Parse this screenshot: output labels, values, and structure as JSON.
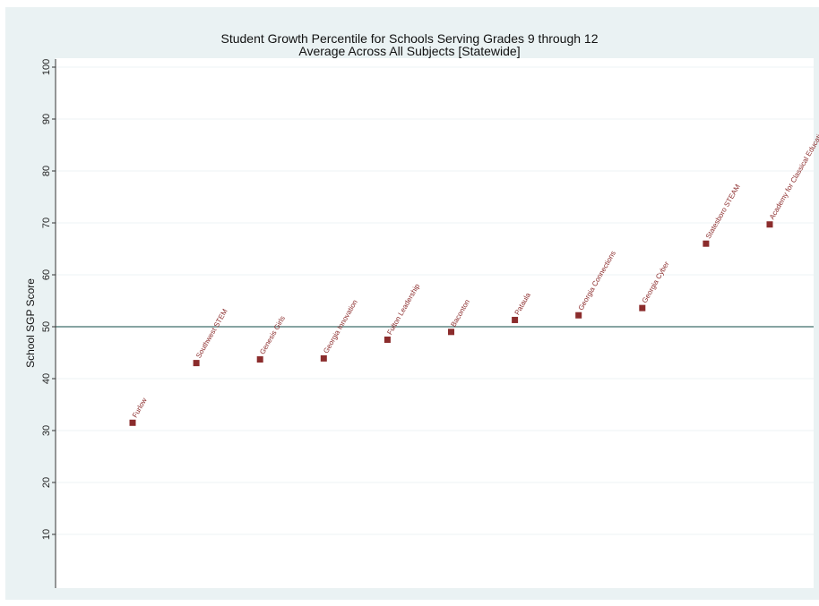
{
  "chart_data": {
    "type": "scatter",
    "title": "Student Growth Percentile for Schools Serving Grades 9 through 12",
    "subtitle": "Average Across All Subjects [Statewide]",
    "xlabel": "",
    "ylabel": "School SGP Score",
    "ylim": [
      0,
      100
    ],
    "yticks": [
      10,
      20,
      30,
      40,
      50,
      60,
      70,
      80,
      90,
      100
    ],
    "reference_line": 50,
    "grid": true,
    "marker_color": "#8b2c2c",
    "label_color": "#8b2c2c",
    "reference_line_color": "#3f6e6a",
    "points": [
      {
        "label": "Furlow",
        "y": 31.5
      },
      {
        "label": "Southwest STEM",
        "y": 43
      },
      {
        "label": "Genesis Girls",
        "y": 43.7
      },
      {
        "label": "Georgia Innovation",
        "y": 43.9
      },
      {
        "label": "Fulton Leadership",
        "y": 47.5
      },
      {
        "label": "Baconton",
        "y": 49
      },
      {
        "label": "Pataula",
        "y": 51.3
      },
      {
        "label": "Georgia Connections",
        "y": 52.2
      },
      {
        "label": "Georgia Cyber",
        "y": 53.6
      },
      {
        "label": "Statesboro STEAM",
        "y": 66
      },
      {
        "label": "Academy for Classical Education",
        "y": 69.7
      }
    ]
  }
}
